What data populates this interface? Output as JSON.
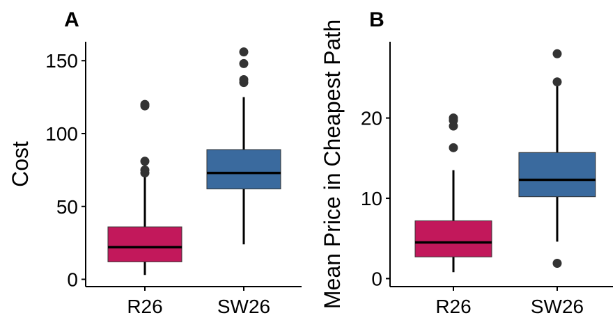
{
  "chart_data": [
    {
      "type": "box",
      "panel_label": "A",
      "title": "",
      "xlabel": "",
      "ylabel": "Cost",
      "ylim": [
        -5,
        163
      ],
      "yticks": [
        0,
        50,
        100,
        150
      ],
      "ytick_labels": [
        "0",
        "50",
        "100",
        "150"
      ],
      "categories": [
        "R26",
        "SW26"
      ],
      "colors": [
        "#C2185B",
        "#3A6A9E"
      ],
      "boxes": [
        {
          "category": "R26",
          "whisker_low": 3,
          "q1": 12,
          "median": 22,
          "q3": 36,
          "whisker_high": 72,
          "outliers": [
            73,
            75,
            81,
            119,
            120
          ]
        },
        {
          "category": "SW26",
          "whisker_low": 24,
          "q1": 62,
          "median": 73,
          "q3": 89,
          "whisker_high": 125,
          "outliers": [
            135,
            137,
            148,
            156
          ]
        }
      ],
      "grid": false,
      "legend": "none"
    },
    {
      "type": "box",
      "panel_label": "B",
      "title": "",
      "xlabel": "",
      "ylabel": "Mean Price in Cheapest Path",
      "ylim": [
        -1,
        29.5
      ],
      "yticks": [
        0,
        10,
        20
      ],
      "ytick_labels": [
        "0",
        "10",
        "20"
      ],
      "categories": [
        "R26",
        "SW26"
      ],
      "colors": [
        "#C2185B",
        "#3A6A9E"
      ],
      "boxes": [
        {
          "category": "R26",
          "whisker_low": 0.8,
          "q1": 2.7,
          "median": 4.5,
          "q3": 7.2,
          "whisker_high": 13.5,
          "outliers": [
            16.3,
            19,
            19.7,
            20
          ]
        },
        {
          "category": "SW26",
          "whisker_low": 4.6,
          "q1": 10.2,
          "median": 12.3,
          "q3": 15.7,
          "whisker_high": 24,
          "outliers": [
            1.9,
            24.5,
            28
          ]
        }
      ],
      "grid": false,
      "legend": "none"
    }
  ]
}
